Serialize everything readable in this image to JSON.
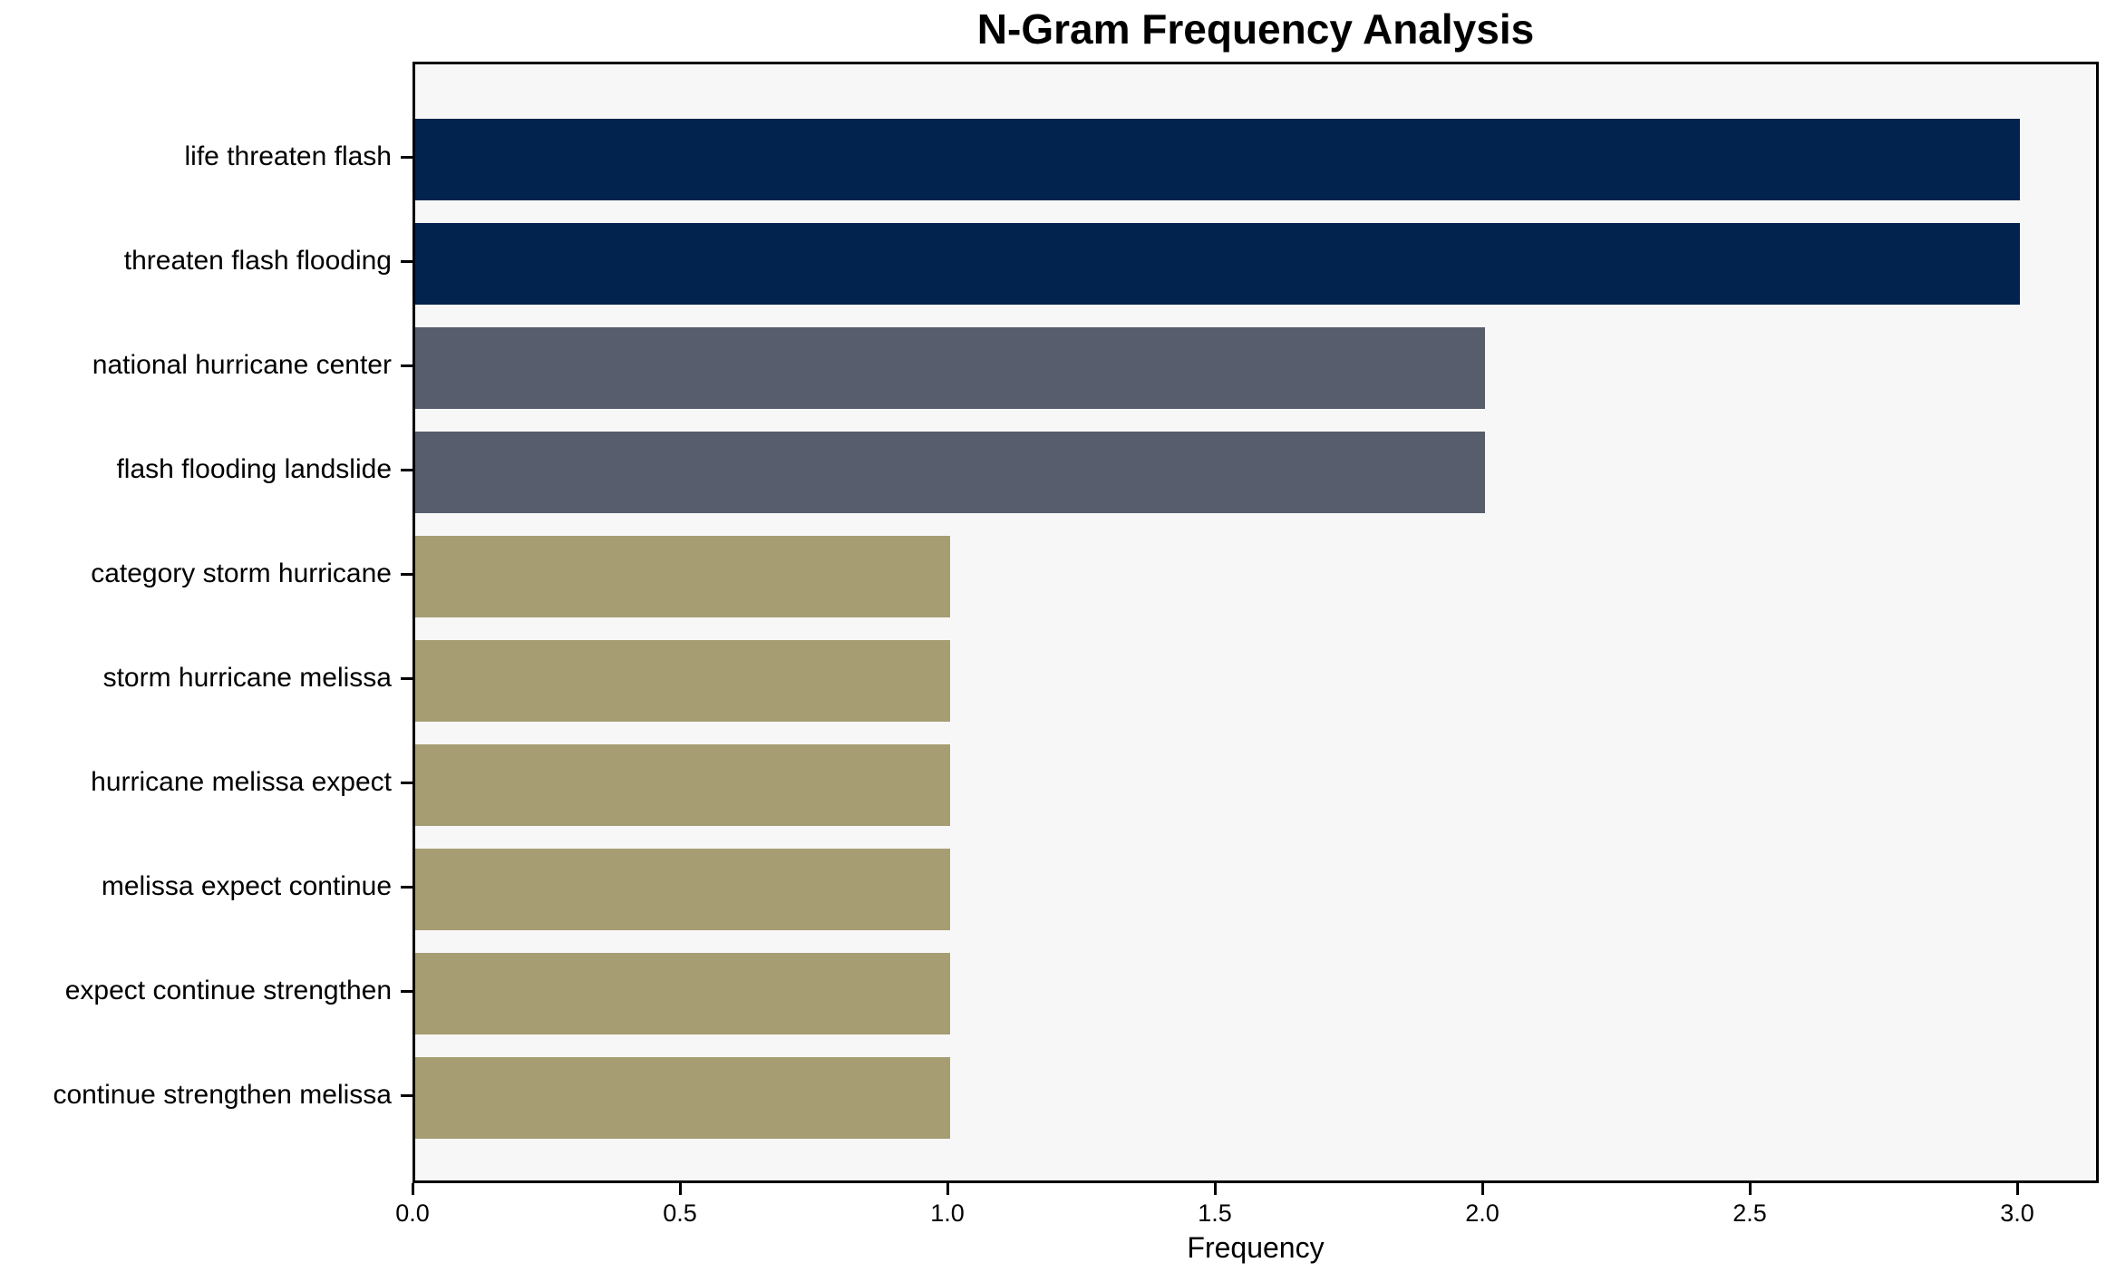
{
  "chart_data": {
    "type": "bar",
    "orientation": "horizontal",
    "title": "N-Gram Frequency Analysis",
    "xlabel": "Frequency",
    "ylabel": "",
    "categories": [
      "life threaten flash",
      "threaten flash flooding",
      "national hurricane center",
      "flash flooding landslide",
      "category storm hurricane",
      "storm hurricane melissa",
      "hurricane melissa expect",
      "melissa expect continue",
      "expect continue strengthen",
      "continue strengthen melissa"
    ],
    "values": [
      3,
      3,
      2,
      2,
      1,
      1,
      1,
      1,
      1,
      1
    ],
    "bar_colors": [
      "#02234d",
      "#02234d",
      "#575d6d",
      "#575d6d",
      "#a69d73",
      "#a69d73",
      "#a69d73",
      "#a69d73",
      "#a69d73",
      "#a69d73"
    ],
    "xtick_labels": [
      "0.0",
      "0.5",
      "1.0",
      "1.5",
      "2.0",
      "2.5",
      "3.0"
    ],
    "xtick_values": [
      0,
      0.5,
      1.0,
      1.5,
      2.0,
      2.5,
      3.0
    ],
    "xlim": [
      0,
      3.15
    ],
    "grid": false,
    "legend": null,
    "plot_background": "#f7f7f7",
    "figure_background": "#ffffff",
    "axis_color": "#000000",
    "text_color": "#000000"
  }
}
